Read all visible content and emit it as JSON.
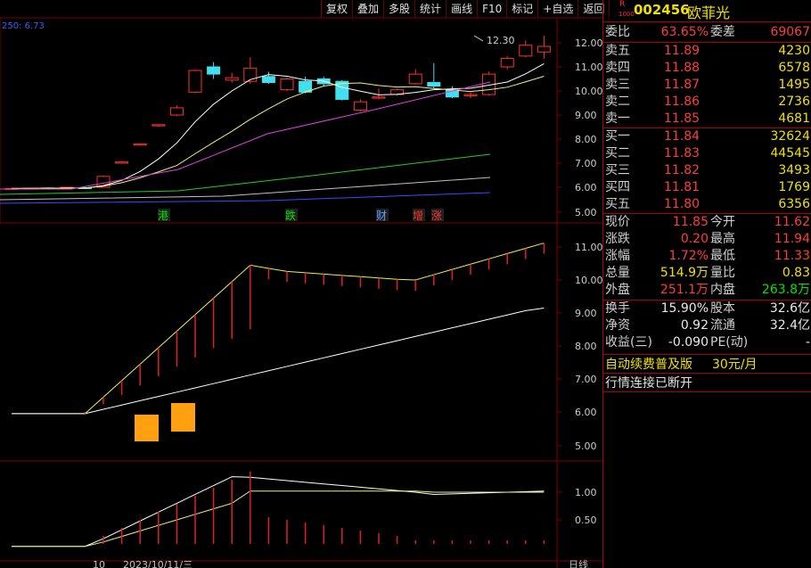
{
  "toolbar": {
    "items": [
      "复权",
      "叠加",
      "多股",
      "统计",
      "画线",
      "F10",
      "标记",
      "+自选",
      "返回"
    ]
  },
  "indicator_label": "250: 6.73",
  "top_pane": {
    "ma_label": "12.30",
    "price_axis": [
      "12.00",
      "11.00",
      "10.00",
      "9.00",
      "8.00",
      "7.00",
      "6.00",
      "5.00"
    ],
    "markers": [
      {
        "t": "港",
        "color": "#00e000"
      },
      {
        "t": "跌",
        "color": "#00e000"
      },
      {
        "t": "财",
        "color": "#5aa0ff"
      },
      {
        "t": "增",
        "color": "#ff3030"
      },
      {
        "t": "涨",
        "color": "#ff3030"
      }
    ]
  },
  "mid_pane": {
    "axis": [
      "11.00",
      "10.00",
      "9.00",
      "8.00",
      "7.00",
      "6.00",
      "5.00"
    ]
  },
  "low_pane": {
    "axis": [
      "1.00",
      "0.50"
    ]
  },
  "bottom_text": {
    "a": "10",
    "b": "2023/10/11/三",
    "c": "日线"
  },
  "stock": {
    "code": "002456",
    "name": "欧菲光",
    "badge_top": "R",
    "badge_bottom": "1000"
  },
  "weibi": {
    "label1": "委比",
    "v1": "63.65%",
    "label2": "委差",
    "v2": "69067"
  },
  "sell": [
    {
      "label": "卖五",
      "price": "11.89",
      "vol": "4230"
    },
    {
      "label": "卖四",
      "price": "11.88",
      "vol": "6578"
    },
    {
      "label": "卖三",
      "price": "11.87",
      "vol": "1495"
    },
    {
      "label": "卖二",
      "price": "11.86",
      "vol": "2736"
    },
    {
      "label": "卖一",
      "price": "11.85",
      "vol": "4681"
    }
  ],
  "buy": [
    {
      "label": "买一",
      "price": "11.84",
      "vol": "32624"
    },
    {
      "label": "买二",
      "price": "11.83",
      "vol": "44545"
    },
    {
      "label": "买三",
      "price": "11.82",
      "vol": "3493"
    },
    {
      "label": "买四",
      "price": "11.81",
      "vol": "1769"
    },
    {
      "label": "买五",
      "price": "11.80",
      "vol": "6356"
    }
  ],
  "stats": [
    {
      "l1": "现价",
      "v1": "11.85",
      "c1": "red",
      "l2": "今开",
      "v2": "11.62",
      "c2": "red"
    },
    {
      "l1": "涨跌",
      "v1": "0.20",
      "c1": "red",
      "l2": "最高",
      "v2": "11.94",
      "c2": "red"
    },
    {
      "l1": "涨幅",
      "v1": "1.72%",
      "c1": "red",
      "l2": "最低",
      "v2": "11.33",
      "c2": "red"
    },
    {
      "l1": "总量",
      "v1": "514.9万",
      "c1": "yellow",
      "l2": "量比",
      "v2": "0.83",
      "c2": "yellow"
    },
    {
      "l1": "外盘",
      "v1": "251.1万",
      "c1": "red",
      "l2": "内盘",
      "v2": "263.8万",
      "c2": "green"
    }
  ],
  "stats2": [
    {
      "l1": "换手",
      "v1": "15.90%",
      "l2": "股本",
      "v2": "32.6亿"
    },
    {
      "l1": "净资",
      "v1": "0.92",
      "l2": "流通",
      "v2": "32.4亿"
    },
    {
      "l1": "收益(三)",
      "v1": "-0.090",
      "l2": "PE(动)",
      "v2": "-"
    }
  ],
  "promo": {
    "text": "自动续费普及版",
    "price": "30元/月"
  },
  "status": "行情连接已断开",
  "colors": {
    "up": "#ff3030",
    "down": "#40e0f0",
    "grid": "#800000"
  }
}
